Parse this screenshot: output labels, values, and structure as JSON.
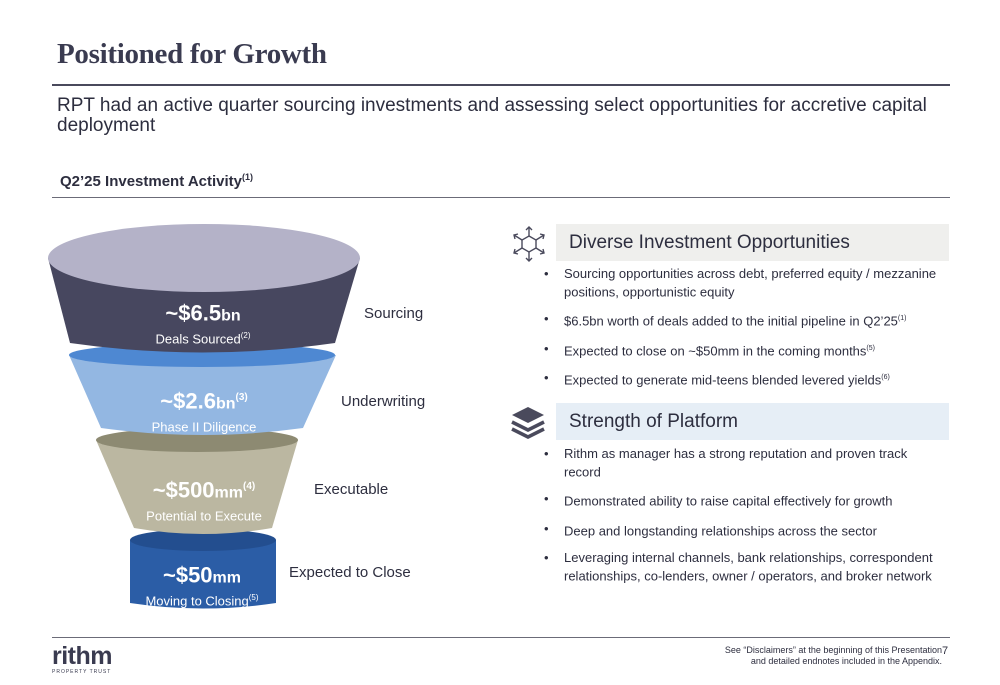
{
  "title": "Positioned for Growth",
  "subtitle": "RPT had an active quarter sourcing investments and assessing select opportunities for accretive capital deployment",
  "section": {
    "label": "Q2’25 Investment Activity",
    "sup": "(1)"
  },
  "funnel": [
    {
      "value": "~$6.5",
      "unit": "bn",
      "value_sup": "",
      "desc": "Deals Sourced",
      "desc_sup": "(2)",
      "stage": "Sourcing",
      "color": "#47475f"
    },
    {
      "value": "~$2.6",
      "unit": "bn",
      "value_sup": "(3)",
      "desc": "Phase II Diligence",
      "desc_sup": "",
      "stage": "Underwriting",
      "color": "#93b7e2"
    },
    {
      "value": "~$500",
      "unit": "mm",
      "value_sup": "(4)",
      "desc": "Potential to Execute",
      "desc_sup": "",
      "stage": "Executable",
      "color": "#bbb7a1"
    },
    {
      "value": "~$50",
      "unit": "mm",
      "value_sup": "",
      "desc": "Moving to Closing",
      "desc_sup": "(5)",
      "stage": "Expected to Close",
      "color": "#2b5da6"
    }
  ],
  "cards": [
    {
      "icon": "network-icon",
      "heading": "Diverse Investment Opportunities",
      "bullets": [
        {
          "text": "Sourcing opportunities across debt, preferred equity / mezzanine positions, opportunistic equity",
          "sup": ""
        },
        {
          "text": "$6.5bn worth of deals added to the initial pipeline in Q2’25",
          "sup": "(1)"
        },
        {
          "text": "Expected to close on ~$50mm in the coming months",
          "sup": "(5)"
        },
        {
          "text": "Expected to generate mid-teens blended levered yields",
          "sup": "(6)"
        }
      ]
    },
    {
      "icon": "layers-icon",
      "heading": "Strength of Platform",
      "bullets": [
        {
          "text": "Rithm as manager has a strong reputation and proven track record",
          "sup": ""
        },
        {
          "text": "Demonstrated ability to raise capital effectively for growth",
          "sup": ""
        },
        {
          "text": "Deep and longstanding relationships across the sector",
          "sup": ""
        },
        {
          "text": "Leveraging internal channels, bank relationships, correspondent relationships, co-lenders, owner / operators, and broker network",
          "sup": ""
        }
      ]
    }
  ],
  "footer": {
    "logo_word": "rithm",
    "logo_tag": "PROPERTY TRUST",
    "note_line1": "See “Disclaimers” at the beginning of this Presentation",
    "note_line2": "and detailed endnotes included in the Appendix.",
    "page": "7"
  }
}
